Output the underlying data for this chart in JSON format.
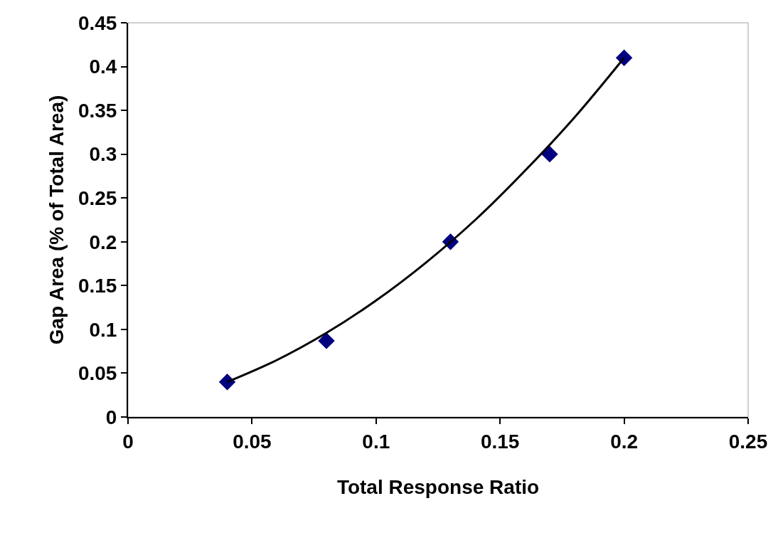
{
  "chart_data": {
    "type": "scatter",
    "xlabel": "Total Response Ratio",
    "ylabel": "Gap Area (% of Total Area)",
    "x": [
      0.04,
      0.08,
      0.13,
      0.17,
      0.2
    ],
    "series": [
      {
        "color": "#000080",
        "marker": "diamond",
        "values": [
          0.04,
          0.087,
          0.2,
          0.3,
          0.41
        ]
      },
      {
        "type": "line",
        "color": "#000000",
        "marker": "none",
        "line_style": "solid",
        "x": [
          0.04,
          0.06,
          0.08,
          0.1,
          0.12,
          0.14,
          0.16,
          0.18,
          0.2
        ],
        "values": [
          0.04,
          0.065,
          0.096,
          0.133,
          0.176,
          0.225,
          0.281,
          0.342,
          0.41
        ]
      }
    ],
    "xlim": [
      0,
      0.25
    ],
    "xticks": [
      0,
      0.05,
      0.1,
      0.15,
      0.2,
      0.25
    ],
    "ylim": [
      0,
      0.45
    ],
    "yticks": [
      0,
      0.05,
      0.1,
      0.15,
      0.2,
      0.25,
      0.3,
      0.35,
      0.4,
      0.45
    ],
    "grid": false,
    "legend": false
  }
}
